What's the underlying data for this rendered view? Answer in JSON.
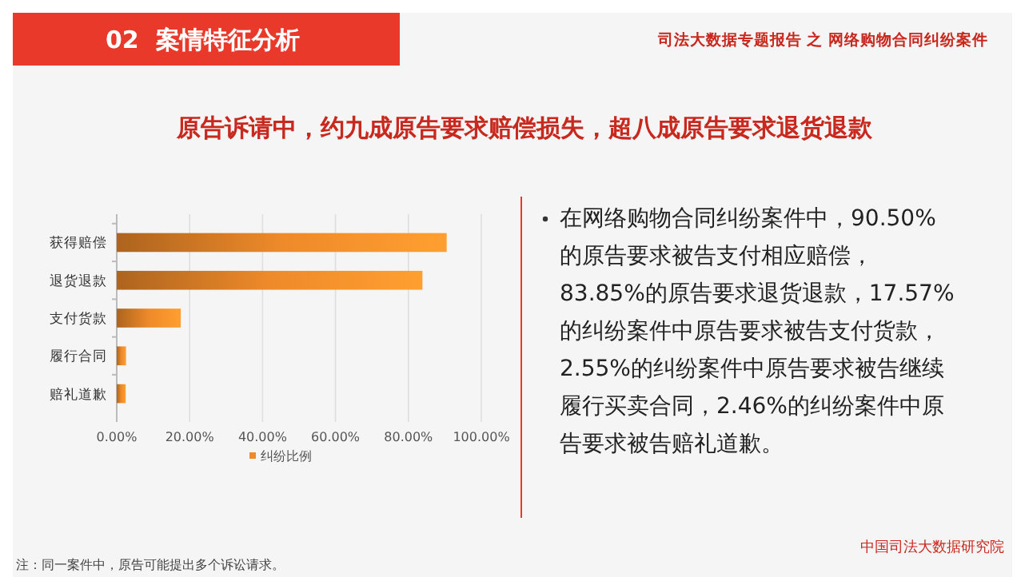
{
  "chart_data": {
    "type": "bar",
    "orientation": "horizontal",
    "title": "原告诉请中，约九成原告要求赔偿损失，超八成原告要求退货退款",
    "categories": [
      "获得赔偿",
      "退货退款",
      "支付货款",
      "履行合同",
      "赔礼道歉"
    ],
    "series": [
      {
        "name": "纠纷比例",
        "color": "#ee8a2a",
        "values": [
          90.5,
          83.85,
          17.57,
          2.55,
          2.46
        ]
      }
    ],
    "xlim": [
      0,
      100
    ],
    "xticks": [
      {
        "value": 0,
        "label": "0.00%"
      },
      {
        "value": 20,
        "label": "20.00%"
      },
      {
        "value": 40,
        "label": "40.00%"
      },
      {
        "value": 60,
        "label": "60.00%"
      },
      {
        "value": 80,
        "label": "80.00%"
      },
      {
        "value": 100,
        "label": "100.00%"
      }
    ],
    "grid": "x",
    "legend": "bottom",
    "annotations": [
      "02  案情特征分析",
      "司法大数据专题报告 之 网络购物合同纠纷案件",
      "在网络购物合同纠纷案件中，90.50%的原告要求被告支付相应赔偿，83.85%的原告要求退货退款，17.57%的纠纷案件中原告要求被告支付货款，2.55%的纠纷案件中原告要求被告继续履行买卖合同，2.46%的纠纷案件中原告要求被告赔礼道歉。",
      "注：同一案件中，原告可能提出多个诉讼请求。",
      "中国司法大数据研究院"
    ]
  }
}
